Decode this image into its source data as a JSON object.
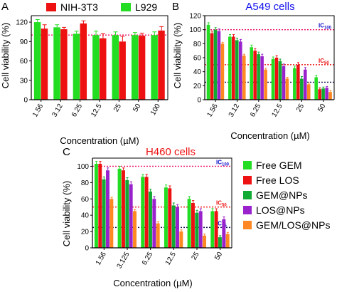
{
  "chart_data": [
    {
      "panel": "A",
      "type": "bar",
      "title": "",
      "ylabel": "Cell viability (%)",
      "xlabel": "Concentration (µM)",
      "ylim": [
        0,
        130
      ],
      "yticks": [
        0,
        30,
        60,
        90,
        120
      ],
      "categories": [
        "1.56",
        "3.12",
        "6.25",
        "12.5",
        "25",
        "50",
        "100"
      ],
      "legend_position": "top",
      "series": [
        {
          "name": "L929",
          "color": "#22dd22",
          "values": [
            120,
            112,
            102,
            100,
            100,
            100,
            100
          ],
          "errors": [
            4,
            4,
            4,
            6,
            5,
            4,
            5
          ]
        },
        {
          "name": "NIH-3T3",
          "color": "#ee1111",
          "values": [
            110,
            109,
            118,
            95,
            90,
            99,
            107
          ],
          "errors": [
            6,
            3,
            4,
            7,
            8,
            4,
            6
          ]
        }
      ],
      "legend_order": [
        "NIH-3T3",
        "L929"
      ],
      "reference_lines": [
        {
          "value": 100,
          "color": "#ee1166",
          "label": ""
        }
      ]
    },
    {
      "panel": "B",
      "type": "bar",
      "title": "A549 cells",
      "ylabel": "Cell viability (%)",
      "xlabel": "Concentration (µM)",
      "ylim": [
        0,
        120
      ],
      "yticks": [
        0,
        20,
        40,
        60,
        80,
        100,
        120
      ],
      "categories": [
        "1.56",
        "3.12",
        "6.25",
        "12.5",
        "25",
        "50"
      ],
      "series": [
        {
          "name": "Free GEM",
          "color": "#22dd22",
          "values": [
            107,
            90,
            75,
            58,
            45,
            32
          ],
          "errors": [
            3,
            3,
            3,
            3,
            3,
            3
          ]
        },
        {
          "name": "Free LOS",
          "color": "#ee1111",
          "values": [
            95,
            90,
            70,
            60,
            50,
            15
          ],
          "errors": [
            3,
            3,
            3,
            3,
            3,
            2
          ]
        },
        {
          "name": "GEM@NPs",
          "color": "#11aa33",
          "values": [
            100,
            85,
            65,
            55,
            30,
            16
          ],
          "errors": [
            3,
            3,
            3,
            3,
            3,
            2
          ]
        },
        {
          "name": "LOS@NPs",
          "color": "#9922cc",
          "values": [
            98,
            83,
            62,
            48,
            43,
            17
          ],
          "errors": [
            3,
            3,
            3,
            3,
            3,
            2
          ]
        },
        {
          "name": "GEM/LOS@NPs",
          "color": "#ff8822",
          "values": [
            80,
            63,
            43,
            30,
            22,
            11
          ],
          "errors": [
            2,
            2,
            2,
            2,
            2,
            2
          ]
        }
      ],
      "reference_lines": [
        {
          "value": 100,
          "color": "#ee1166",
          "label": "IC",
          "sub": "100",
          "label_color": "#1111cc"
        },
        {
          "value": 50,
          "color": "#ee1111",
          "label": "IC",
          "sub": "50",
          "label_color": "#ee1111"
        },
        {
          "value": 25,
          "color": "#111155",
          "label": "",
          "sub": ""
        }
      ]
    },
    {
      "panel": "C",
      "type": "bar",
      "title": "H460 cells",
      "ylabel": "Cell viability (%)",
      "xlabel": "Concentration (µM)",
      "ylim": [
        0,
        110
      ],
      "yticks": [
        0,
        20,
        40,
        60,
        80,
        100
      ],
      "categories": [
        "1.56",
        "3.125",
        "6.25",
        "12.5",
        "25",
        "50"
      ],
      "series": [
        {
          "name": "Free GEM",
          "color": "#22dd22",
          "values": [
            103,
            97,
            87,
            74,
            60,
            45
          ],
          "errors": [
            3,
            3,
            3,
            3,
            3,
            3
          ]
        },
        {
          "name": "Free LOS",
          "color": "#ee1111",
          "values": [
            103,
            95,
            87,
            73,
            55,
            45
          ],
          "errors": [
            3,
            3,
            3,
            3,
            3,
            3
          ]
        },
        {
          "name": "GEM@NPs",
          "color": "#11aa33",
          "values": [
            84,
            83,
            69,
            52,
            43,
            13
          ],
          "errors": [
            3,
            3,
            3,
            3,
            3,
            2
          ]
        },
        {
          "name": "LOS@NPs",
          "color": "#9922cc",
          "values": [
            95,
            78,
            60,
            50,
            45,
            35
          ],
          "errors": [
            3,
            3,
            3,
            3,
            3,
            3
          ]
        },
        {
          "name": "GEM/LOS@NPs",
          "color": "#ff8822",
          "values": [
            60,
            45,
            30,
            20,
            15,
            17
          ],
          "errors": [
            2,
            2,
            2,
            2,
            2,
            2
          ]
        }
      ],
      "reference_lines": [
        {
          "value": 100,
          "color": "#ee1166",
          "label": "IC",
          "sub": "100",
          "label_color": "#1111cc"
        },
        {
          "value": 50,
          "color": "#ee1111",
          "label": "IC",
          "sub": "50",
          "label_color": "#ee1111"
        },
        {
          "value": 25,
          "color": "#111155",
          "label": "IC",
          "sub": "25",
          "label_color": "#1111cc"
        }
      ],
      "legend_position": "right"
    }
  ]
}
